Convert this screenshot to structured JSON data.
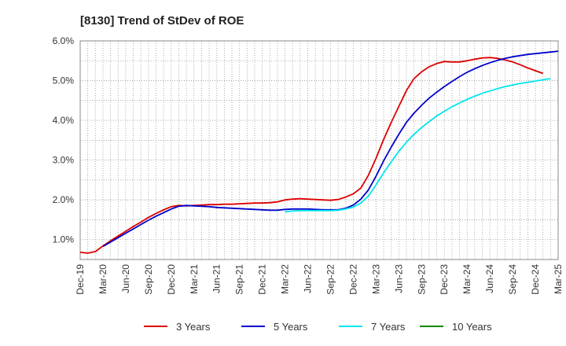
{
  "chart_data": {
    "type": "line",
    "title": "[8130]  Trend of StDev of ROE",
    "xlabel": "",
    "ylabel": "",
    "x_tick_labels": [
      "Dec-19",
      "Mar-20",
      "Jun-20",
      "Sep-20",
      "Dec-20",
      "Mar-21",
      "Jun-21",
      "Sep-21",
      "Dec-21",
      "Mar-22",
      "Jun-22",
      "Sep-22",
      "Dec-22",
      "Mar-23",
      "Jun-23",
      "Sep-23",
      "Dec-23",
      "Mar-24",
      "Jun-24",
      "Sep-24",
      "Dec-24",
      "Mar-25"
    ],
    "y_tick_labels": [
      "1.0%",
      "2.0%",
      "3.0%",
      "4.0%",
      "5.0%",
      "6.0%"
    ],
    "y_ticks": [
      1.0,
      2.0,
      3.0,
      4.0,
      5.0,
      6.0
    ],
    "ylim": [
      0.5,
      6.0
    ],
    "x_range": [
      "2019-12",
      "2025-03"
    ],
    "x_tick_step_months": 3,
    "grid": true,
    "legend_position": "bottom",
    "series": [
      {
        "name": "3 Years",
        "color": "#dd0000",
        "start": "2019-12",
        "values": [
          0.68,
          0.66,
          0.7,
          0.84,
          0.97,
          1.09,
          1.21,
          1.33,
          1.44,
          1.56,
          1.66,
          1.75,
          1.83,
          1.86,
          1.85,
          1.86,
          1.87,
          1.88,
          1.88,
          1.89,
          1.89,
          1.9,
          1.91,
          1.92,
          1.92,
          1.93,
          1.95,
          2.0,
          2.02,
          2.03,
          2.02,
          2.01,
          2.0,
          1.99,
          2.01,
          2.07,
          2.15,
          2.3,
          2.62,
          3.05,
          3.52,
          3.95,
          4.35,
          4.75,
          5.05,
          5.22,
          5.35,
          5.43,
          5.48,
          5.47,
          5.47,
          5.5,
          5.54,
          5.57,
          5.58,
          5.56,
          5.52,
          5.47,
          5.4,
          5.32,
          5.25,
          5.18
        ]
      },
      {
        "name": "5 Years",
        "color": "#0000cc",
        "start": "2020-03",
        "values": [
          0.83,
          0.94,
          1.05,
          1.16,
          1.27,
          1.38,
          1.49,
          1.59,
          1.68,
          1.77,
          1.84,
          1.86,
          1.85,
          1.84,
          1.83,
          1.81,
          1.8,
          1.79,
          1.78,
          1.77,
          1.76,
          1.75,
          1.74,
          1.74,
          1.76,
          1.77,
          1.77,
          1.77,
          1.76,
          1.75,
          1.75,
          1.75,
          1.79,
          1.87,
          2.02,
          2.25,
          2.6,
          2.98,
          3.33,
          3.65,
          3.95,
          4.18,
          4.38,
          4.56,
          4.71,
          4.85,
          4.98,
          5.1,
          5.21,
          5.3,
          5.38,
          5.45,
          5.51,
          5.56,
          5.6,
          5.63,
          5.66,
          5.68,
          5.7,
          5.72,
          5.74
        ]
      },
      {
        "name": "7 Years",
        "color": "#00e5ee",
        "start": "2022-03",
        "values": [
          1.7,
          1.72,
          1.73,
          1.73,
          1.73,
          1.73,
          1.73,
          1.74,
          1.77,
          1.82,
          1.92,
          2.1,
          2.38,
          2.68,
          2.96,
          3.22,
          3.45,
          3.65,
          3.82,
          3.97,
          4.11,
          4.23,
          4.34,
          4.44,
          4.53,
          4.61,
          4.68,
          4.74,
          4.8,
          4.85,
          4.89,
          4.93,
          4.96,
          4.99,
          5.02,
          5.05
        ]
      },
      {
        "name": "10 Years",
        "color": "#008800",
        "start": "2019-12",
        "values": []
      }
    ]
  }
}
